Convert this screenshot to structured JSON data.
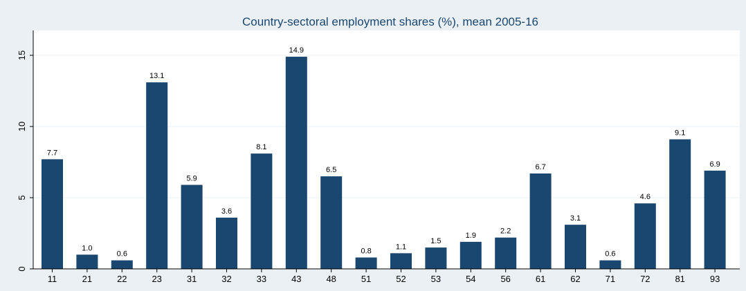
{
  "chart_data": {
    "type": "bar",
    "title": "Country-sectoral employment shares (%), mean 2005-16",
    "xlabel": "",
    "ylabel": "",
    "categories": [
      "11",
      "21",
      "22",
      "23",
      "31",
      "32",
      "33",
      "43",
      "48",
      "51",
      "52",
      "53",
      "54",
      "56",
      "61",
      "62",
      "71",
      "72",
      "81",
      "93"
    ],
    "values": [
      7.7,
      1.0,
      0.6,
      13.1,
      5.9,
      3.6,
      8.1,
      14.9,
      6.5,
      0.8,
      1.1,
      1.5,
      1.9,
      2.2,
      6.7,
      3.1,
      0.6,
      4.6,
      9.1,
      6.9
    ],
    "data_labels": [
      "7.7",
      "1.0",
      "0.6",
      "13.1",
      "5.9",
      "3.6",
      "8.1",
      "14.9",
      "6.5",
      "0.8",
      "1.1",
      "1.5",
      "1.9",
      "2.2",
      "6.7",
      "3.1",
      "0.6",
      "4.6",
      "9.1",
      "6.9"
    ],
    "yticks": [
      0,
      5,
      10,
      15
    ],
    "ytick_labels": [
      "0",
      "5",
      "10",
      "15"
    ],
    "ylim": [
      0,
      16.7
    ],
    "grid": true,
    "legend": "none",
    "colors": {
      "bar": "#1a476f",
      "plot_background": "#ffffff",
      "outer_background": "#eaf0f4",
      "grid": "#eaf0f4",
      "title": "#1a476f"
    }
  }
}
